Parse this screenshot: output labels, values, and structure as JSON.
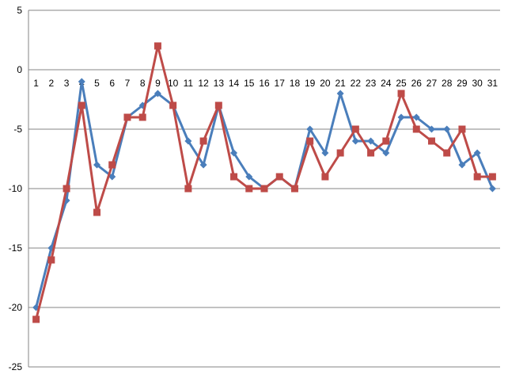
{
  "chart_data": {
    "type": "line",
    "title": "",
    "xlabel": "",
    "ylabel": "",
    "ylim": [
      -25,
      5
    ],
    "yticks": [
      "5",
      "0",
      "-5",
      "-10",
      "-15",
      "-20",
      "-25"
    ],
    "grid": "horizontal",
    "legend": "none",
    "categories": [
      "1",
      "2",
      "3",
      "4",
      "5",
      "6",
      "7",
      "8",
      "9",
      "10",
      "11",
      "12",
      "13",
      "14",
      "15",
      "16",
      "17",
      "18",
      "19",
      "20",
      "21",
      "22",
      "23",
      "24",
      "25",
      "26",
      "27",
      "28",
      "29",
      "30",
      "31"
    ],
    "series": [
      {
        "color": "#4a7ebb",
        "marker": "diamond",
        "values": [
          -20,
          -15,
          -11,
          -1,
          -8,
          -9,
          -4,
          -3,
          -2,
          -3,
          -6,
          -8,
          -3,
          -7,
          -9,
          -10,
          -9,
          -10,
          -5,
          -7,
          -2,
          -6,
          -6,
          -7,
          -4,
          -4,
          -5,
          -5,
          -8,
          -7,
          -10
        ]
      },
      {
        "color": "#be4b48",
        "marker": "square",
        "values": [
          -21,
          -16,
          -10,
          -3,
          -12,
          -8,
          -4,
          -4,
          2,
          -3,
          -10,
          -6,
          -3,
          -9,
          -10,
          -10,
          -9,
          -10,
          -6,
          -9,
          -7,
          -5,
          -7,
          -6,
          -2,
          -5,
          -6,
          -7,
          -5,
          -9,
          -9
        ]
      }
    ]
  }
}
